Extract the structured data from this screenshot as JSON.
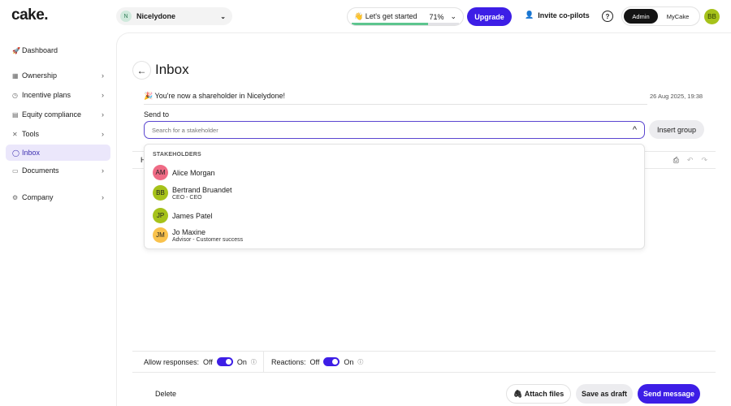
{
  "header": {
    "logo": "cake.",
    "org": {
      "initial": "N",
      "name": "Nicelydone"
    },
    "getting_started": {
      "label": "👋 Let's get started",
      "percent_label": "71%",
      "progress": 71
    },
    "upgrade": "Upgrade",
    "invite": "Invite co-pilots",
    "help": "?",
    "mode": {
      "active": "Admin",
      "other": "MyCake"
    },
    "user_initials": "BB"
  },
  "sidebar": {
    "items": [
      {
        "label": "Dashboard",
        "icon": "rocket-icon"
      },
      {
        "label": "Ownership",
        "icon": "grid-icon"
      },
      {
        "label": "Incentive plans",
        "icon": "clock-icon"
      },
      {
        "label": "Equity compliance",
        "icon": "clipboard-icon"
      },
      {
        "label": "Tools",
        "icon": "tools-icon"
      },
      {
        "label": "Inbox",
        "icon": "chat-icon"
      },
      {
        "label": "Documents",
        "icon": "folder-icon"
      },
      {
        "label": "Company",
        "icon": "gear-icon"
      }
    ]
  },
  "main": {
    "title": "Inbox",
    "subject": "🎉 You're now a shareholder in Nicelydone!",
    "date": "26 Aug 2025, 19:38",
    "send_to_label": "Send to",
    "search_placeholder": "Search for a stakeholder",
    "insert_group": "Insert group",
    "toolbar_heading": "H",
    "dropdown": {
      "header": "STAKEHOLDERS",
      "options": [
        {
          "initials": "AM",
          "name": "Alice Morgan",
          "role": "",
          "color": "#ef6b85"
        },
        {
          "initials": "BB",
          "name": "Bertrand Bruandet",
          "role": "CEO - CEO",
          "color": "#a6c21a"
        },
        {
          "initials": "JP",
          "name": "James Patel",
          "role": "",
          "color": "#a6c21a"
        },
        {
          "initials": "JM",
          "name": "Jo Maxine",
          "role": "Advisor - Customer success",
          "color": "#f9c24c"
        }
      ]
    },
    "settings": {
      "allow_responses": "Allow responses:",
      "reactions": "Reactions:",
      "off": "Off",
      "on": "On"
    },
    "actions": {
      "delete": "Delete",
      "attach": "Attach files",
      "draft": "Save as draft",
      "send": "Send message"
    }
  },
  "colors": {
    "accent": "#3d1ee6",
    "active_bg": "#ebe7fb"
  }
}
